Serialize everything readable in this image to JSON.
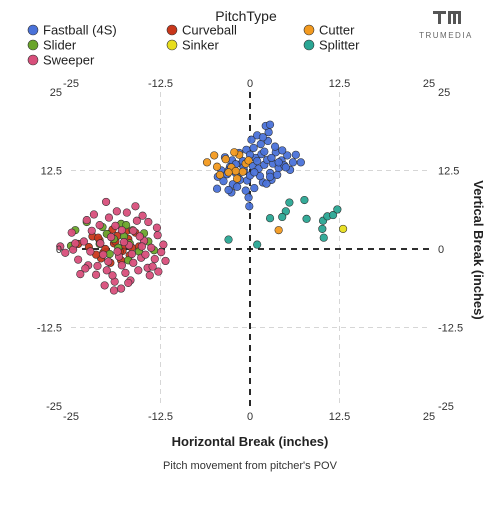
{
  "brand": {
    "name": "TRUMEDIA"
  },
  "chart_data": {
    "type": "scatter",
    "legend_title": "PitchType",
    "legend_position": "top",
    "xlabel": "Horizontal Break (inches)",
    "ylabel": "Vertical Break (inches)",
    "caption": "Pitch movement from pitcher's POV",
    "xlim": [
      -25,
      25
    ],
    "ylim": [
      -25,
      25
    ],
    "x_ticks": [
      -25,
      -12.5,
      0,
      12.5,
      25
    ],
    "y_ticks": [
      -25,
      -12.5,
      0,
      12.5,
      25
    ],
    "x_tick_labels": [
      "-25",
      "-12.5",
      "0",
      "12.5",
      "25"
    ],
    "y_tick_labels": [
      "-25",
      "-12.5",
      "0",
      "12.5",
      "25"
    ],
    "grid": true,
    "zero_lines": "dashed",
    "series": [
      {
        "name": "Fastball (4S)",
        "color": "#4a72d9",
        "points": [
          [
            -4.5,
            11.5
          ],
          [
            -4.0,
            12.5
          ],
          [
            -3.7,
            10.8
          ],
          [
            -3.2,
            11.9
          ],
          [
            -2.8,
            13.1
          ],
          [
            -2.4,
            10.3
          ],
          [
            -2.0,
            12.1
          ],
          [
            -1.6,
            11.2
          ],
          [
            -1.2,
            13.6
          ],
          [
            -0.8,
            12.4
          ],
          [
            -0.4,
            10.9
          ],
          [
            0.0,
            11.7
          ],
          [
            0.4,
            13.2
          ],
          [
            0.8,
            14.5
          ],
          [
            1.2,
            12.8
          ],
          [
            1.6,
            15.1
          ],
          [
            2.0,
            13.4
          ],
          [
            2.4,
            14.2
          ],
          [
            2.8,
            12.1
          ],
          [
            3.2,
            13.6
          ],
          [
            3.6,
            15.4
          ],
          [
            4.0,
            12.9
          ],
          [
            4.4,
            14.1
          ],
          [
            4.8,
            13.3
          ],
          [
            5.2,
            14.9
          ],
          [
            5.6,
            12.6
          ],
          [
            6.0,
            13.8
          ],
          [
            6.4,
            15.0
          ],
          [
            -3.5,
            14.6
          ],
          [
            -2.5,
            14.1
          ],
          [
            -1.5,
            15.3
          ],
          [
            -0.5,
            15.8
          ],
          [
            0.5,
            16.1
          ],
          [
            1.5,
            16.7
          ],
          [
            2.5,
            17.2
          ],
          [
            3.5,
            16.3
          ],
          [
            4.5,
            15.7
          ],
          [
            0.2,
            17.4
          ],
          [
            1.0,
            18.1
          ],
          [
            1.8,
            17.8
          ],
          [
            2.6,
            18.6
          ],
          [
            2.2,
            19.6
          ],
          [
            2.8,
            19.8
          ],
          [
            -1.8,
            9.9
          ],
          [
            -0.6,
            9.3
          ],
          [
            0.6,
            9.7
          ],
          [
            1.8,
            10.6
          ],
          [
            3.0,
            11.0
          ],
          [
            -2.6,
            9.0
          ],
          [
            -0.2,
            8.2
          ],
          [
            -0.1,
            6.8
          ],
          [
            -4.6,
            9.6
          ],
          [
            -3.0,
            9.4
          ],
          [
            2.3,
            10.4
          ],
          [
            7.1,
            13.8
          ],
          [
            -1.0,
            14.0
          ],
          [
            0.0,
            15.0
          ],
          [
            1.0,
            14.0
          ],
          [
            2.0,
            15.5
          ],
          [
            3.0,
            14.5
          ],
          [
            -2.0,
            13.5
          ],
          [
            -3.0,
            12.5
          ],
          [
            4.0,
            13.8
          ],
          [
            5.0,
            13.0
          ],
          [
            1.4,
            11.6
          ],
          [
            -1.4,
            11.0
          ],
          [
            0.6,
            12.2
          ],
          [
            2.8,
            11.5
          ],
          [
            3.8,
            11.8
          ],
          [
            -0.9,
            13.0
          ]
        ]
      },
      {
        "name": "Curveball",
        "color": "#c9371b",
        "points": [
          [
            -24.0,
            0.8
          ],
          [
            -22.5,
            0.3
          ],
          [
            -21.0,
            1.4
          ],
          [
            -20.5,
            -0.6
          ],
          [
            -19.0,
            0.9
          ],
          [
            -18.5,
            2.1
          ],
          [
            -17.8,
            -0.3
          ],
          [
            -17.0,
            1.6
          ],
          [
            -16.5,
            0.2
          ],
          [
            -19.8,
            2.4
          ],
          [
            -20.8,
            -1.5
          ],
          [
            -18.0,
            -1.8
          ],
          [
            -16.0,
            2.6
          ],
          [
            -22.0,
            2.0
          ],
          [
            -21.5,
            -0.9
          ],
          [
            -19.5,
            -2.2
          ],
          [
            -17.5,
            0.6
          ],
          [
            -18.8,
            1.2
          ],
          [
            -20.2,
            0.0
          ],
          [
            -16.8,
            -1.0
          ],
          [
            -15.5,
            0.4
          ],
          [
            -19.2,
            3.1
          ],
          [
            -21.2,
            1.8
          ],
          [
            -17.2,
            2.9
          ],
          [
            -18.2,
            -0.4
          ]
        ]
      },
      {
        "name": "Cutter",
        "color": "#f39a1f",
        "points": [
          [
            -6.0,
            13.8
          ],
          [
            -5.0,
            14.9
          ],
          [
            -4.2,
            11.8
          ],
          [
            -3.4,
            14.3
          ],
          [
            -2.6,
            13.0
          ],
          [
            -2.0,
            12.4
          ],
          [
            -1.5,
            15.0
          ],
          [
            -1.0,
            12.3
          ],
          [
            -0.6,
            13.6
          ],
          [
            -3.0,
            12.2
          ],
          [
            -2.2,
            15.4
          ],
          [
            -4.6,
            13.1
          ],
          [
            -1.8,
            11.2
          ],
          [
            -0.2,
            14.1
          ],
          [
            4.0,
            3.0
          ]
        ]
      },
      {
        "name": "Slider",
        "color": "#6aa52b",
        "points": [
          [
            -25.0,
            0.5
          ],
          [
            -24.4,
            3.0
          ],
          [
            -22.8,
            4.3
          ],
          [
            -21.0,
            0.8
          ],
          [
            -20.0,
            2.4
          ],
          [
            -19.6,
            -0.8
          ],
          [
            -18.4,
            0.2
          ],
          [
            -17.6,
            2.0
          ],
          [
            -17.0,
            -1.8
          ],
          [
            -16.4,
            3.0
          ],
          [
            -15.5,
            -0.4
          ],
          [
            -14.8,
            2.5
          ],
          [
            -13.4,
            -0.2
          ],
          [
            -18.0,
            4.0
          ],
          [
            -19.0,
            1.6
          ],
          [
            -16.8,
            0.9
          ],
          [
            -20.6,
            3.5
          ],
          [
            -17.3,
            3.8
          ],
          [
            -14.2,
            1.2
          ]
        ]
      },
      {
        "name": "Sinker",
        "color": "#e8de1c",
        "points": [
          [
            13.0,
            3.2
          ]
        ]
      },
      {
        "name": "Splitter",
        "color": "#2aa694",
        "points": [
          [
            2.8,
            4.9
          ],
          [
            5.5,
            7.4
          ],
          [
            7.6,
            7.8
          ],
          [
            5.0,
            6.0
          ],
          [
            4.5,
            5.1
          ],
          [
            7.9,
            4.8
          ],
          [
            10.2,
            4.5
          ],
          [
            10.8,
            5.2
          ],
          [
            11.6,
            5.4
          ],
          [
            12.2,
            6.3
          ],
          [
            10.1,
            3.2
          ],
          [
            10.3,
            1.8
          ],
          [
            -3.0,
            1.5
          ],
          [
            1.0,
            0.7
          ]
        ]
      },
      {
        "name": "Sweeper",
        "color": "#d84f7b",
        "points": [
          [
            -26.5,
            0.4
          ],
          [
            -25.8,
            -0.6
          ],
          [
            -24.7,
            -0.1
          ],
          [
            -24.0,
            -1.7
          ],
          [
            -23.2,
            1.2
          ],
          [
            -22.6,
            -2.6
          ],
          [
            -22.1,
            2.9
          ],
          [
            -21.5,
            -4.1
          ],
          [
            -21.0,
            3.8
          ],
          [
            -20.5,
            -0.9
          ],
          [
            -20.0,
            -3.4
          ],
          [
            -19.4,
            1.9
          ],
          [
            -18.9,
            -5.2
          ],
          [
            -18.3,
            -1.2
          ],
          [
            -17.9,
            3.0
          ],
          [
            -17.4,
            -3.8
          ],
          [
            -16.9,
            0.6
          ],
          [
            -16.3,
            -2.2
          ],
          [
            -15.8,
            4.5
          ],
          [
            -15.2,
            -1.4
          ],
          [
            -14.8,
            1.3
          ],
          [
            -14.3,
            -3.0
          ],
          [
            -13.8,
            0.2
          ],
          [
            -13.3,
            -1.6
          ],
          [
            -12.9,
            2.2
          ],
          [
            -12.4,
            -0.5
          ],
          [
            -22.8,
            4.6
          ],
          [
            -24.9,
            2.6
          ],
          [
            -23.7,
            -4.0
          ],
          [
            -20.3,
            -5.8
          ],
          [
            -19.2,
            -4.2
          ],
          [
            -18.0,
            -6.3
          ],
          [
            -16.7,
            -5.0
          ],
          [
            -15.6,
            -3.4
          ],
          [
            -14.0,
            -4.2
          ],
          [
            -21.8,
            5.5
          ],
          [
            -19.7,
            5.0
          ],
          [
            -17.2,
            5.8
          ],
          [
            -16.0,
            6.8
          ],
          [
            -20.1,
            7.5
          ],
          [
            -18.6,
            6.0
          ],
          [
            -15.0,
            5.3
          ],
          [
            -13.0,
            3.4
          ],
          [
            -12.1,
            0.7
          ],
          [
            -11.8,
            -1.9
          ],
          [
            -22.3,
            -0.4
          ],
          [
            -20.9,
            0.9
          ],
          [
            -19.8,
            -2.0
          ],
          [
            -18.5,
            -0.4
          ],
          [
            -17.6,
            1.1
          ],
          [
            -16.5,
            -0.8
          ],
          [
            -15.4,
            2.0
          ],
          [
            -14.6,
            -0.9
          ],
          [
            -21.3,
            -2.7
          ],
          [
            -23.0,
            -3.1
          ],
          [
            -24.4,
            0.9
          ],
          [
            -17.0,
            -5.4
          ],
          [
            -18.8,
            3.7
          ],
          [
            -13.6,
            -2.8
          ],
          [
            -12.8,
            -3.6
          ],
          [
            -14.2,
            4.3
          ],
          [
            -19.0,
            -6.6
          ],
          [
            -17.9,
            -2.6
          ],
          [
            -16.3,
            2.9
          ],
          [
            -15.1,
            0.4
          ]
        ]
      }
    ]
  }
}
